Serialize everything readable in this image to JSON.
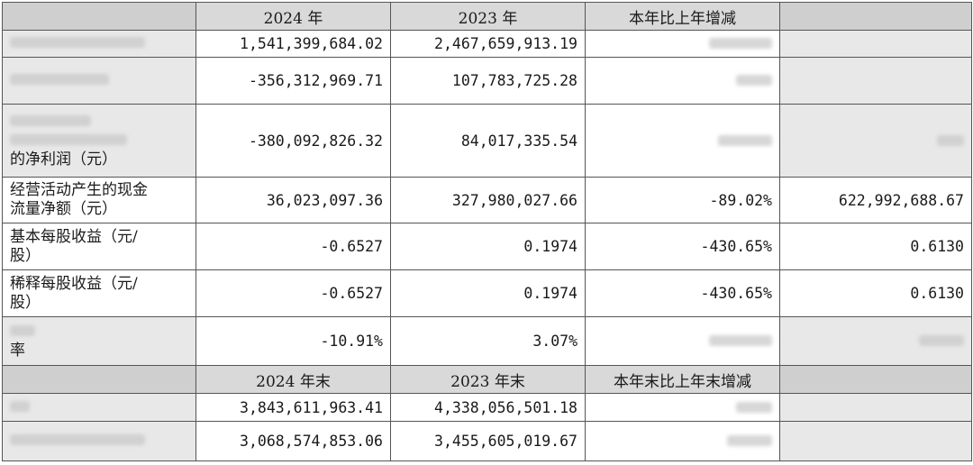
{
  "header1": {
    "c1": "",
    "c2": "2024 年",
    "c3": "2023 年",
    "c4": "本年比上年增减",
    "c5": ""
  },
  "rows": [
    {
      "label": "",
      "v2024": "1,541,399,684.02",
      "v2023": "2,467,659,913.19",
      "change": "",
      "extra": ""
    },
    {
      "label": "",
      "v2024": "-356,312,969.71",
      "v2023": "107,783,725.28",
      "change": "",
      "extra": ""
    },
    {
      "label_line1": "",
      "label_line2": "的净利润（元）",
      "v2024": "-380,092,826.32",
      "v2023": "84,017,335.54",
      "change": "",
      "extra": ""
    },
    {
      "label_line1": "经营活动产生的现金",
      "label_line2": "流量净额（元）",
      "v2024": "36,023,097.36",
      "v2023": "327,980,027.66",
      "change": "-89.02%",
      "extra": "622,992,688.67"
    },
    {
      "label_line1": "基本每股收益（元/",
      "label_line2": "股）",
      "v2024": "-0.6527",
      "v2023": "0.1974",
      "change": "-430.65%",
      "extra": "0.6130"
    },
    {
      "label_line1": "稀释每股收益（元/",
      "label_line2": "股）",
      "v2024": "-0.6527",
      "v2023": "0.1974",
      "change": "-430.65%",
      "extra": "0.6130"
    },
    {
      "label_line1": "",
      "label_line2": "率",
      "v2024": "-10.91%",
      "v2023": "3.07%",
      "change": "",
      "extra": ""
    }
  ],
  "header2": {
    "c1": "",
    "c2": "2024 年末",
    "c3": "2023 年末",
    "c4": "本年末比上年末增减",
    "c5": ""
  },
  "rows2": [
    {
      "label": "",
      "v2024": "3,843,611,963.41",
      "v2023": "4,338,056,501.18",
      "change": "",
      "extra": ""
    },
    {
      "label": "",
      "v2024": "3,068,574,853.06",
      "v2023": "3,455,605,019.67",
      "change": "",
      "extra": ""
    }
  ]
}
